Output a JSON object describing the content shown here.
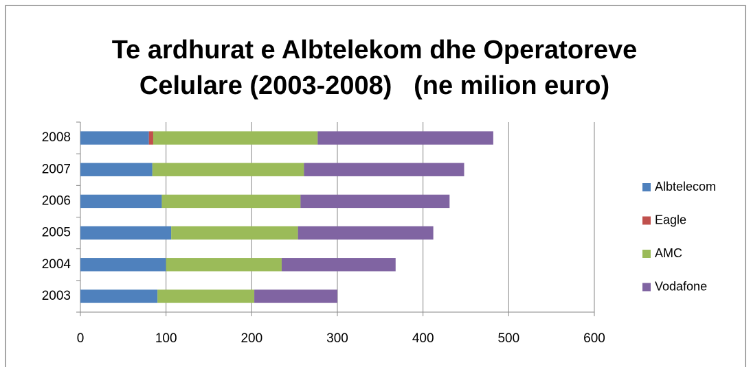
{
  "chart_data": {
    "type": "stacked-barh",
    "title": [
      "Te ardhurat e Albtelekom dhe Operatoreve",
      "Celulare (2003-2008)   (ne milion euro)"
    ],
    "categories": [
      "2003",
      "2004",
      "2005",
      "2006",
      "2007",
      "2008"
    ],
    "series": [
      {
        "name": "Albtelecom",
        "color": "#4f81bd",
        "values": [
          90,
          100,
          106,
          95,
          84,
          80
        ]
      },
      {
        "name": "Eagle",
        "color": "#c0504d",
        "values": [
          0,
          0,
          0,
          0,
          0,
          5
        ]
      },
      {
        "name": "AMC",
        "color": "#9bbb59",
        "values": [
          113,
          135,
          148,
          162,
          177,
          192
        ]
      },
      {
        "name": "Vodafone",
        "color": "#8064a2",
        "values": [
          97,
          133,
          158,
          174,
          187,
          205
        ]
      }
    ],
    "xlim": [
      0,
      600
    ],
    "xticks": [
      0,
      100,
      200,
      300,
      400,
      500,
      600
    ],
    "grid": true,
    "legend": "right"
  }
}
